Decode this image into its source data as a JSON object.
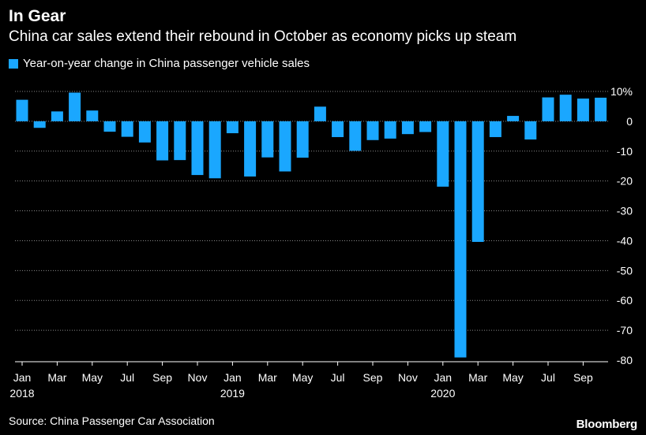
{
  "header": {
    "title": "In Gear",
    "subtitle": "China car sales extend their rebound in October as economy picks up steam"
  },
  "legend": {
    "label": "Year-on-year change in China passenger vehicle sales",
    "color": "#1aa7ff"
  },
  "footer": {
    "source": "Source: China Passenger Car Association",
    "brand": "Bloomberg"
  },
  "chart_data": {
    "type": "bar",
    "unit": "%",
    "bar_color": "#1aa7ff",
    "ylim": [
      -80,
      10
    ],
    "yticks": [
      10,
      0,
      -10,
      -20,
      -30,
      -40,
      -50,
      -60,
      -70,
      -80
    ],
    "ytick_labels": [
      "10%",
      "0",
      "-10",
      "-20",
      "-30",
      "-40",
      "-50",
      "-60",
      "-70",
      "-80"
    ],
    "grid": true,
    "legend_position": "top-left",
    "categories": [
      "Jan 2018",
      "Feb 2018",
      "Mar 2018",
      "Apr 2018",
      "May 2018",
      "Jun 2018",
      "Jul 2018",
      "Aug 2018",
      "Sep 2018",
      "Oct 2018",
      "Nov 2018",
      "Dec 2018",
      "Jan 2019",
      "Feb 2019",
      "Mar 2019",
      "Apr 2019",
      "May 2019",
      "Jun 2019",
      "Jul 2019",
      "Aug 2019",
      "Sep 2019",
      "Oct 2019",
      "Nov 2019",
      "Dec 2019",
      "Jan 2020",
      "Feb 2020",
      "Mar 2020",
      "Apr 2020",
      "May 2020",
      "Jun 2020",
      "Jul 2020",
      "Aug 2020",
      "Sep 2020",
      "Oct 2020"
    ],
    "values": [
      7.2,
      -2.2,
      3.3,
      9.6,
      3.6,
      -3.5,
      -5.2,
      -7.1,
      -13.1,
      -13.0,
      -18.0,
      -19.1,
      -4.0,
      -18.5,
      -12.1,
      -16.8,
      -12.2,
      4.9,
      -5.3,
      -9.9,
      -6.3,
      -5.8,
      -4.3,
      -3.6,
      -21.9,
      -79.1,
      -40.4,
      -5.3,
      1.8,
      -6.1,
      8.0,
      8.9,
      7.6,
      7.9
    ],
    "x_tick_labels": [
      {
        "index": 0,
        "label": "Jan",
        "year": "2018"
      },
      {
        "index": 2,
        "label": "Mar"
      },
      {
        "index": 4,
        "label": "May"
      },
      {
        "index": 6,
        "label": "Jul"
      },
      {
        "index": 8,
        "label": "Sep"
      },
      {
        "index": 10,
        "label": "Nov"
      },
      {
        "index": 12,
        "label": "Jan",
        "year": "2019"
      },
      {
        "index": 14,
        "label": "Mar"
      },
      {
        "index": 16,
        "label": "May"
      },
      {
        "index": 18,
        "label": "Jul"
      },
      {
        "index": 20,
        "label": "Sep"
      },
      {
        "index": 22,
        "label": "Nov"
      },
      {
        "index": 24,
        "label": "Jan",
        "year": "2020"
      },
      {
        "index": 26,
        "label": "Mar"
      },
      {
        "index": 28,
        "label": "May"
      },
      {
        "index": 30,
        "label": "Jul"
      },
      {
        "index": 32,
        "label": "Sep"
      }
    ]
  }
}
